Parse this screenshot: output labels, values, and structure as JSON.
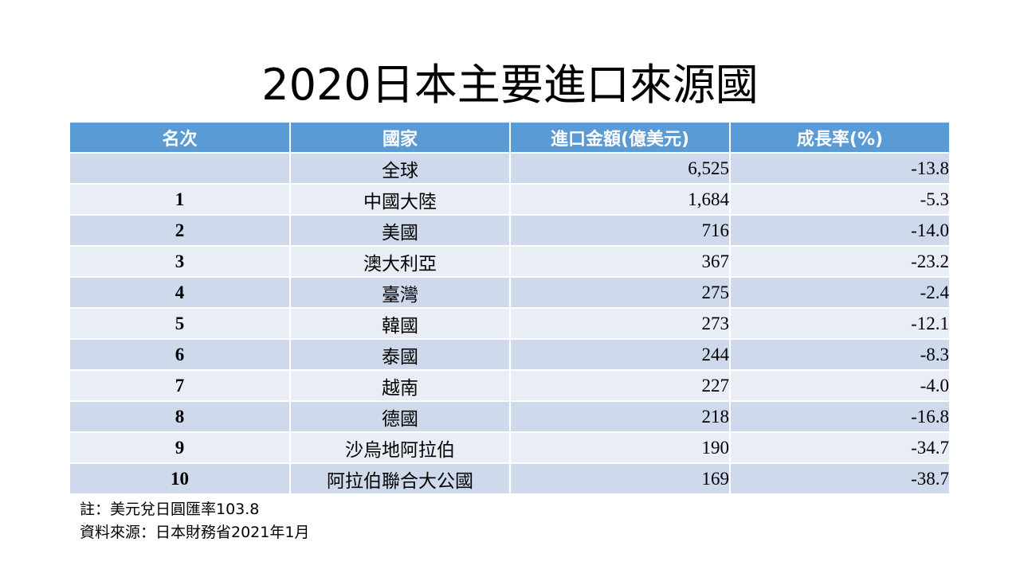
{
  "title": "2020日本主要進口來源國",
  "table": {
    "headers": [
      "名次",
      "國家",
      "進口金額(億美元)",
      "成長率(%)"
    ],
    "rows": [
      {
        "rank": "",
        "country": "全球",
        "amount": "6,525",
        "growth": "-13.8"
      },
      {
        "rank": "1",
        "country": "中國大陸",
        "amount": "1,684",
        "growth": "-5.3"
      },
      {
        "rank": "2",
        "country": "美國",
        "amount": "716",
        "growth": "-14.0"
      },
      {
        "rank": "3",
        "country": "澳大利亞",
        "amount": "367",
        "growth": "-23.2"
      },
      {
        "rank": "4",
        "country": "臺灣",
        "amount": "275",
        "growth": "-2.4"
      },
      {
        "rank": "5",
        "country": "韓國",
        "amount": "273",
        "growth": "-12.1"
      },
      {
        "rank": "6",
        "country": "泰國",
        "amount": "244",
        "growth": "-8.3"
      },
      {
        "rank": "7",
        "country": "越南",
        "amount": "227",
        "growth": "-4.0"
      },
      {
        "rank": "8",
        "country": "德國",
        "amount": "218",
        "growth": "-16.8"
      },
      {
        "rank": "9",
        "country": "沙烏地阿拉伯",
        "amount": "190",
        "growth": "-34.7"
      },
      {
        "rank": "10",
        "country": "阿拉伯聯合大公國",
        "amount": "169",
        "growth": "-38.7"
      }
    ]
  },
  "notes": {
    "note": "註：美元兌日圓匯率103.8",
    "source": "資料來源：日本財務省2021年1月"
  },
  "colors": {
    "header_bg": "#5b9bd5",
    "row_dark": "#cfd9ec",
    "row_light": "#e8edf6"
  }
}
